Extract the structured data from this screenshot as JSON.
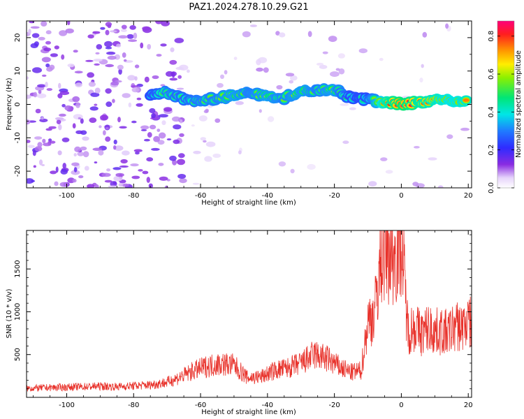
{
  "title": "PAZ1.2024.278.10.29.G21",
  "chart_data": [
    {
      "type": "heatmap",
      "xlabel": "Height of straight line (km)",
      "ylabel": "Frequency (Hz)",
      "xlim": [
        -112,
        21
      ],
      "ylim": [
        -25,
        25
      ],
      "xticks": [
        "-100",
        "-80",
        "-60",
        "-40",
        "-20",
        "0",
        "20"
      ],
      "yticks": [
        "-20",
        "-10",
        "0",
        "10",
        "20"
      ],
      "colorbar": {
        "label": "Normalized spectral amplitude",
        "range": [
          0,
          0.88
        ],
        "ticks": [
          "0.0",
          "0.2",
          "0.4",
          "0.6",
          "0.8"
        ]
      },
      "ridge": [
        {
          "x": -75,
          "f": 3.2,
          "amp": 0.45
        },
        {
          "x": -70,
          "f": 3.5,
          "amp": 0.55
        },
        {
          "x": -65,
          "f": 1.5,
          "amp": 0.5
        },
        {
          "x": -60,
          "f": 1.0,
          "amp": 0.55
        },
        {
          "x": -55,
          "f": 2.0,
          "amp": 0.55
        },
        {
          "x": -50,
          "f": 2.5,
          "amp": 0.6
        },
        {
          "x": -45,
          "f": 3.5,
          "amp": 0.55
        },
        {
          "x": -40,
          "f": 2.5,
          "amp": 0.6
        },
        {
          "x": -35,
          "f": 2.0,
          "amp": 0.55
        },
        {
          "x": -30,
          "f": 4.0,
          "amp": 0.6
        },
        {
          "x": -25,
          "f": 4.5,
          "amp": 0.55
        },
        {
          "x": -20,
          "f": 4.5,
          "amp": 0.6
        },
        {
          "x": -15,
          "f": 2.0,
          "amp": 0.45
        },
        {
          "x": -10,
          "f": 1.5,
          "amp": 0.45
        },
        {
          "x": -5,
          "f": 0.5,
          "amp": 0.75
        },
        {
          "x": 0,
          "f": 0.3,
          "amp": 0.88
        },
        {
          "x": 5,
          "f": 0.5,
          "amp": 0.8
        },
        {
          "x": 10,
          "f": 1.5,
          "amp": 0.75
        },
        {
          "x": 15,
          "f": 1.0,
          "amp": 0.7
        },
        {
          "x": 20,
          "f": 0.8,
          "amp": 0.75
        }
      ]
    },
    {
      "type": "line",
      "xlabel": "Height of straight line (km)",
      "ylabel": "SNR (10 * v/v)",
      "xlim": [
        -112,
        21
      ],
      "ylim": [
        0,
        1950
      ],
      "xticks": [
        "-100",
        "-80",
        "-60",
        "-40",
        "-20",
        "0",
        "20"
      ],
      "yticks": [
        "500",
        "1000",
        "1500"
      ],
      "color": "#e8312a",
      "series": [
        {
          "x": [
            -112,
            -105,
            -100,
            -95,
            -90,
            -85,
            -80,
            -75,
            -70,
            -66,
            -62,
            -58,
            -54,
            -50,
            -46,
            -42,
            -38,
            -34,
            -30,
            -26,
            -22,
            -18,
            -15,
            -12,
            -10,
            -8,
            -6,
            -4,
            -2,
            0,
            2,
            4,
            6,
            8,
            10,
            12,
            14,
            16,
            18,
            20,
            21
          ],
          "y": [
            100,
            110,
            115,
            120,
            125,
            120,
            130,
            140,
            170,
            230,
            300,
            350,
            380,
            360,
            220,
            230,
            300,
            330,
            380,
            480,
            430,
            330,
            280,
            300,
            850,
            950,
            1600,
            1650,
            1580,
            1800,
            750,
            800,
            720,
            780,
            740,
            740,
            720,
            800,
            790,
            850,
            820
          ]
        }
      ]
    }
  ]
}
